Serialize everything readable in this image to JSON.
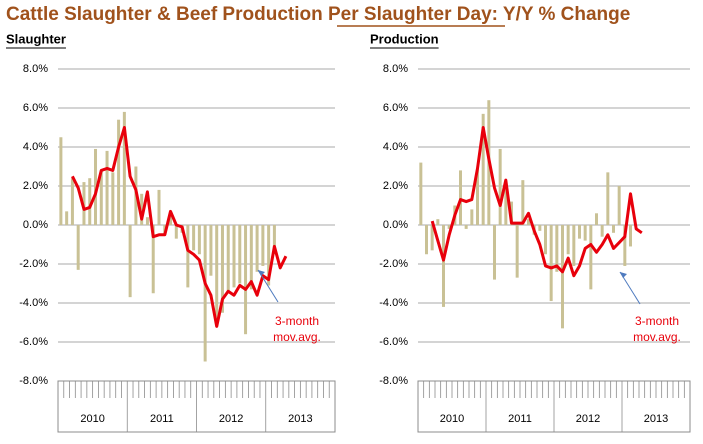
{
  "title": "Cattle Slaughter & Beef Production Per Slaughter Day: Y/Y % Change",
  "chart_data": [
    {
      "type": "bar-line",
      "title": "Slaughter",
      "groups": [
        "2010",
        "2011",
        "2012",
        "2013"
      ],
      "series": [
        {
          "name": "Slaughter",
          "color": "#c9c195",
          "values": [
            4.5,
            0.7,
            2.4,
            -2.3,
            2.2,
            2.4,
            3.9,
            2.8,
            3.8,
            2.7,
            5.4,
            5.8,
            -3.7,
            3.0,
            1.6,
            0.4,
            -3.5,
            1.8,
            -0.5,
            0.6,
            -0.7,
            -0.4,
            -3.2,
            -1.3,
            -1.5,
            -7.0,
            -2.6,
            -5.2,
            -4.5,
            -3.4,
            -3.2,
            -3.0,
            -5.6,
            -3.3,
            -2.4,
            -2.1,
            -3.1,
            -1.5,
            null,
            null,
            null,
            null,
            null,
            null,
            null,
            null,
            null,
            null
          ]
        },
        {
          "name": "3-month mov.avg.",
          "color": "#e8000b",
          "values": [
            null,
            null,
            2.5,
            1.9,
            0.8,
            0.9,
            1.6,
            2.8,
            2.9,
            2.8,
            4.0,
            5.0,
            2.5,
            1.8,
            0.3,
            1.7,
            -0.6,
            -0.5,
            -0.5,
            0.7,
            0.0,
            -0.1,
            -1.3,
            -1.5,
            -1.8,
            -3.0,
            -3.6,
            -5.2,
            -3.8,
            -3.4,
            -3.6,
            -3.1,
            -3.3,
            -2.9,
            -3.6,
            -2.6,
            -2.8,
            -1.1,
            -2.2,
            -1.6,
            null,
            null,
            null,
            null,
            null,
            null,
            null,
            null
          ]
        }
      ],
      "annotation": [
        "3-month",
        "mov.avg."
      ],
      "ylim": [
        -8,
        8
      ],
      "yticks": [
        {
          "value": -8,
          "label": "-8.0%"
        },
        {
          "value": -6,
          "label": "-6.0%"
        },
        {
          "value": -4,
          "label": "-4.0%"
        },
        {
          "value": -2,
          "label": "-2.0%"
        },
        {
          "value": 0,
          "label": "0.0%"
        },
        {
          "value": 2,
          "label": "2.0%"
        },
        {
          "value": 4,
          "label": "4.0%"
        },
        {
          "value": 6,
          "label": "6.0%"
        },
        {
          "value": 8,
          "label": "8.0%"
        }
      ],
      "grid": true
    },
    {
      "type": "bar-line",
      "title": "Production",
      "groups": [
        "2010",
        "2011",
        "2012",
        "2013"
      ],
      "series": [
        {
          "name": "Production",
          "color": "#c9c195",
          "values": [
            3.2,
            -1.5,
            -1.3,
            0.3,
            -4.2,
            -0.2,
            1.0,
            2.8,
            -0.2,
            0.8,
            2.9,
            5.7,
            6.4,
            -2.8,
            3.9,
            2.0,
            1.2,
            -2.7,
            2.3,
            0.3,
            -0.5,
            -0.3,
            -1.5,
            -3.9,
            -2.4,
            -5.3,
            -1.5,
            -2.1,
            -0.7,
            -0.8,
            -3.3,
            0.6,
            -0.6,
            2.7,
            -0.4,
            2.0,
            -2.1,
            -1.1,
            null,
            null,
            null,
            null,
            null,
            null,
            null,
            null,
            null,
            null
          ]
        },
        {
          "name": "3-month mov.avg.",
          "color": "#e8000b",
          "values": [
            null,
            null,
            0.2,
            -0.8,
            -1.8,
            -0.5,
            0.5,
            1.3,
            1.2,
            1.3,
            2.9,
            5.0,
            3.4,
            1.9,
            1.0,
            2.3,
            0.1,
            0.1,
            0.1,
            0.6,
            -0.3,
            -1.0,
            -2.1,
            -2.2,
            -2.1,
            -2.4,
            -1.7,
            -2.6,
            -2.1,
            -1.2,
            -1.0,
            -1.4,
            -1.0,
            -0.5,
            -1.2,
            -0.9,
            -0.6,
            1.6,
            -0.2,
            -0.4,
            null,
            null,
            null,
            null,
            null,
            null,
            null,
            null
          ]
        }
      ],
      "annotation": [
        "3-month",
        "mov.avg."
      ],
      "ylim": [
        -8,
        8
      ],
      "yticks": [
        {
          "value": -8,
          "label": "-8.0%"
        },
        {
          "value": -6,
          "label": "-6.0%"
        },
        {
          "value": -4,
          "label": "-4.0%"
        },
        {
          "value": -2,
          "label": "-2.0%"
        },
        {
          "value": 0,
          "label": "0.0%"
        },
        {
          "value": 2,
          "label": "2.0%"
        },
        {
          "value": 4,
          "label": "4.0%"
        },
        {
          "value": 6,
          "label": "6.0%"
        },
        {
          "value": 8,
          "label": "8.0%"
        }
      ],
      "grid": true
    }
  ]
}
